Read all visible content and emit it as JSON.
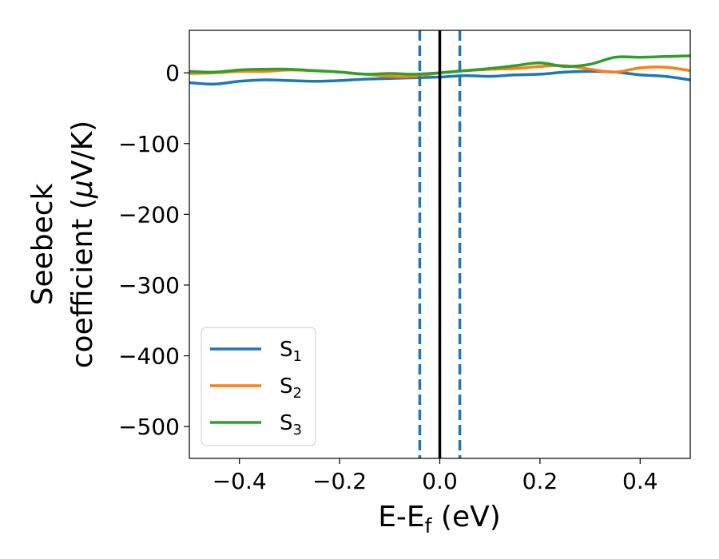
{
  "chart_data": {
    "type": "line",
    "xlabel": {
      "base": "E-E",
      "sub": "f",
      "suffix": " (eV)"
    },
    "ylabel": {
      "line1": "Seebeck",
      "line2_prefix": "coefficient  (",
      "line2_mu": "μ",
      "line2_suffix": "V/K)"
    },
    "xlim": [
      -0.5,
      0.5
    ],
    "ylim": [
      -545,
      60
    ],
    "xticks": [
      -0.4,
      -0.2,
      0.0,
      0.2,
      0.4
    ],
    "xtick_labels": [
      "−0.4",
      "−0.2",
      "0.0",
      "0.2",
      "0.4"
    ],
    "yticks": [
      0,
      -100,
      -200,
      -300,
      -400,
      -500
    ],
    "ytick_labels": [
      "0",
      "−100",
      "−200",
      "−300",
      "−400",
      "−500"
    ],
    "grid": false,
    "legend_position": "lower-left",
    "x": [
      -0.5,
      -0.45,
      -0.4,
      -0.35,
      -0.3,
      -0.25,
      -0.2,
      -0.15,
      -0.1,
      -0.05,
      0.0,
      0.05,
      0.1,
      0.15,
      0.2,
      0.25,
      0.3,
      0.35,
      0.4,
      0.45,
      0.5
    ],
    "series": [
      {
        "name": "S",
        "sub": "1",
        "color": "#1f77b4",
        "values": [
          -14,
          -16,
          -12,
          -10,
          -11,
          -12,
          -11,
          -9,
          -8,
          -7,
          -6,
          -4,
          -5,
          -3,
          -2,
          1,
          2,
          1,
          -3,
          -5,
          -10
        ]
      },
      {
        "name": "S",
        "sub": "2",
        "color": "#ff7f0e",
        "values": [
          -1,
          0,
          2,
          2,
          4,
          3,
          1,
          -2,
          -5,
          -5,
          0,
          3,
          5,
          6,
          9,
          10,
          5,
          1,
          7,
          8,
          3
        ]
      },
      {
        "name": "S",
        "sub": "3",
        "color": "#2ca02c",
        "values": [
          2,
          1,
          4,
          5,
          5,
          3,
          1,
          -2,
          -1,
          -2,
          0,
          3,
          6,
          10,
          14,
          9,
          12,
          22,
          22,
          23,
          24
        ]
      }
    ],
    "vlines": [
      {
        "x": -0.04,
        "style": "dashed",
        "color": "#1f77b4"
      },
      {
        "x": 0.0,
        "style": "solid",
        "color": "#000000"
      },
      {
        "x": 0.04,
        "style": "dashed",
        "color": "#1f77b4"
      }
    ]
  }
}
